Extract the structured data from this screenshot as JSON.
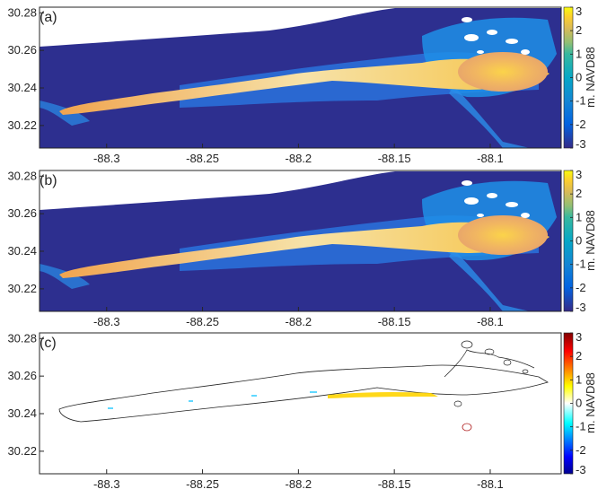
{
  "chart_data": [
    {
      "type": "heatmap",
      "panel_label": "(a)",
      "xticks": [
        -88.3,
        -88.25,
        -88.2,
        -88.15,
        -88.1
      ],
      "yticks": [
        30.28,
        30.26,
        30.24,
        30.22
      ],
      "xlim": [
        -88.335,
        -88.063
      ],
      "ylim": [
        30.208,
        30.283
      ],
      "colorbar": {
        "label": "m. NAVD88",
        "ticks": [
          3,
          2,
          1,
          0,
          -1,
          -2,
          -3
        ],
        "range": [
          -3,
          3
        ],
        "colormap": "parula"
      }
    },
    {
      "type": "heatmap",
      "panel_label": "(b)",
      "xticks": [
        -88.3,
        -88.25,
        -88.2,
        -88.15,
        -88.1
      ],
      "yticks": [
        30.28,
        30.26,
        30.24,
        30.22
      ],
      "xlim": [
        -88.335,
        -88.063
      ],
      "ylim": [
        30.208,
        30.283
      ],
      "colorbar": {
        "label": "m. NAVD88",
        "ticks": [
          3,
          2,
          1,
          0,
          -1,
          -2,
          -3
        ],
        "range": [
          -3,
          3
        ],
        "colormap": "parula"
      }
    },
    {
      "type": "heatmap",
      "panel_label": "(c)",
      "xticks": [
        -88.3,
        -88.25,
        -88.2,
        -88.15,
        -88.1
      ],
      "yticks": [
        30.28,
        30.26,
        30.24,
        30.22
      ],
      "xlim": [
        -88.335,
        -88.063
      ],
      "ylim": [
        30.208,
        30.283
      ],
      "colorbar": {
        "label": "m. NAVD88",
        "ticks": [
          3,
          2,
          1,
          0,
          -1,
          -2,
          -3
        ],
        "range": [
          -3,
          3
        ],
        "colormap": "jet"
      }
    }
  ],
  "colors": {
    "deep_water": "#2d2f8f",
    "island_high": "#f6c243",
    "island_mid": "#f0a860",
    "shoal": "#1f8fe8",
    "outline": "#222222",
    "erosion": "#1ec8ff",
    "accretion": "#ffd400"
  }
}
